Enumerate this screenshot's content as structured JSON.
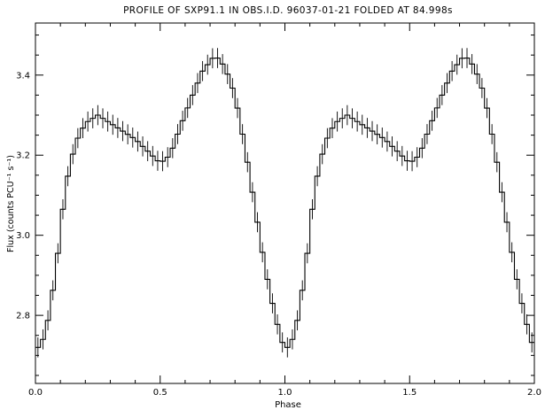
{
  "chart_data": {
    "type": "line",
    "style": "step-histogram-with-error-bars",
    "title": "PROFILE OF SXP91.1 IN OBS.I.D. 96037-01-21 FOLDED AT 84.998s",
    "xlabel": "Phase",
    "ylabel": "Flux (counts PCU⁻¹ s⁻¹)",
    "xlim": [
      0.0,
      2.0
    ],
    "ylim": [
      2.63,
      3.53
    ],
    "x_ticks": [
      0.0,
      0.5,
      1.0,
      1.5,
      2.0
    ],
    "x_tick_labels": [
      "0.0",
      "0.5",
      "1.0",
      "1.5",
      "2.0"
    ],
    "y_ticks": [
      2.8,
      3.0,
      3.2,
      3.4
    ],
    "y_tick_labels": [
      "2.8",
      "3.0",
      "3.2",
      "3.4"
    ],
    "x_minor_step": 0.1,
    "y_minor_step": 0.05,
    "bins_per_cycle": 50,
    "cycles": 2,
    "error": 0.025,
    "profile": [
      {
        "phase": 0.0,
        "flux": 2.71
      },
      {
        "phase": 0.04,
        "flux": 2.75
      },
      {
        "phase": 0.08,
        "flux": 2.9
      },
      {
        "phase": 0.12,
        "flux": 3.12
      },
      {
        "phase": 0.16,
        "flux": 3.23
      },
      {
        "phase": 0.2,
        "flux": 3.28
      },
      {
        "phase": 0.25,
        "flux": 3.3
      },
      {
        "phase": 0.3,
        "flux": 3.28
      },
      {
        "phase": 0.35,
        "flux": 3.26
      },
      {
        "phase": 0.4,
        "flux": 3.24
      },
      {
        "phase": 0.45,
        "flux": 3.21
      },
      {
        "phase": 0.5,
        "flux": 3.18
      },
      {
        "phase": 0.54,
        "flux": 3.2
      },
      {
        "phase": 0.58,
        "flux": 3.27
      },
      {
        "phase": 0.63,
        "flux": 3.35
      },
      {
        "phase": 0.67,
        "flux": 3.41
      },
      {
        "phase": 0.72,
        "flux": 3.45
      },
      {
        "phase": 0.76,
        "flux": 3.42
      },
      {
        "phase": 0.8,
        "flux": 3.35
      },
      {
        "phase": 0.84,
        "flux": 3.22
      },
      {
        "phase": 0.88,
        "flux": 3.07
      },
      {
        "phase": 0.92,
        "flux": 2.92
      },
      {
        "phase": 0.96,
        "flux": 2.8
      },
      {
        "phase": 1.0,
        "flux": 2.71
      }
    ],
    "colors": {
      "background": "#ffffff",
      "line": "#000000",
      "axes": "#000000"
    }
  }
}
